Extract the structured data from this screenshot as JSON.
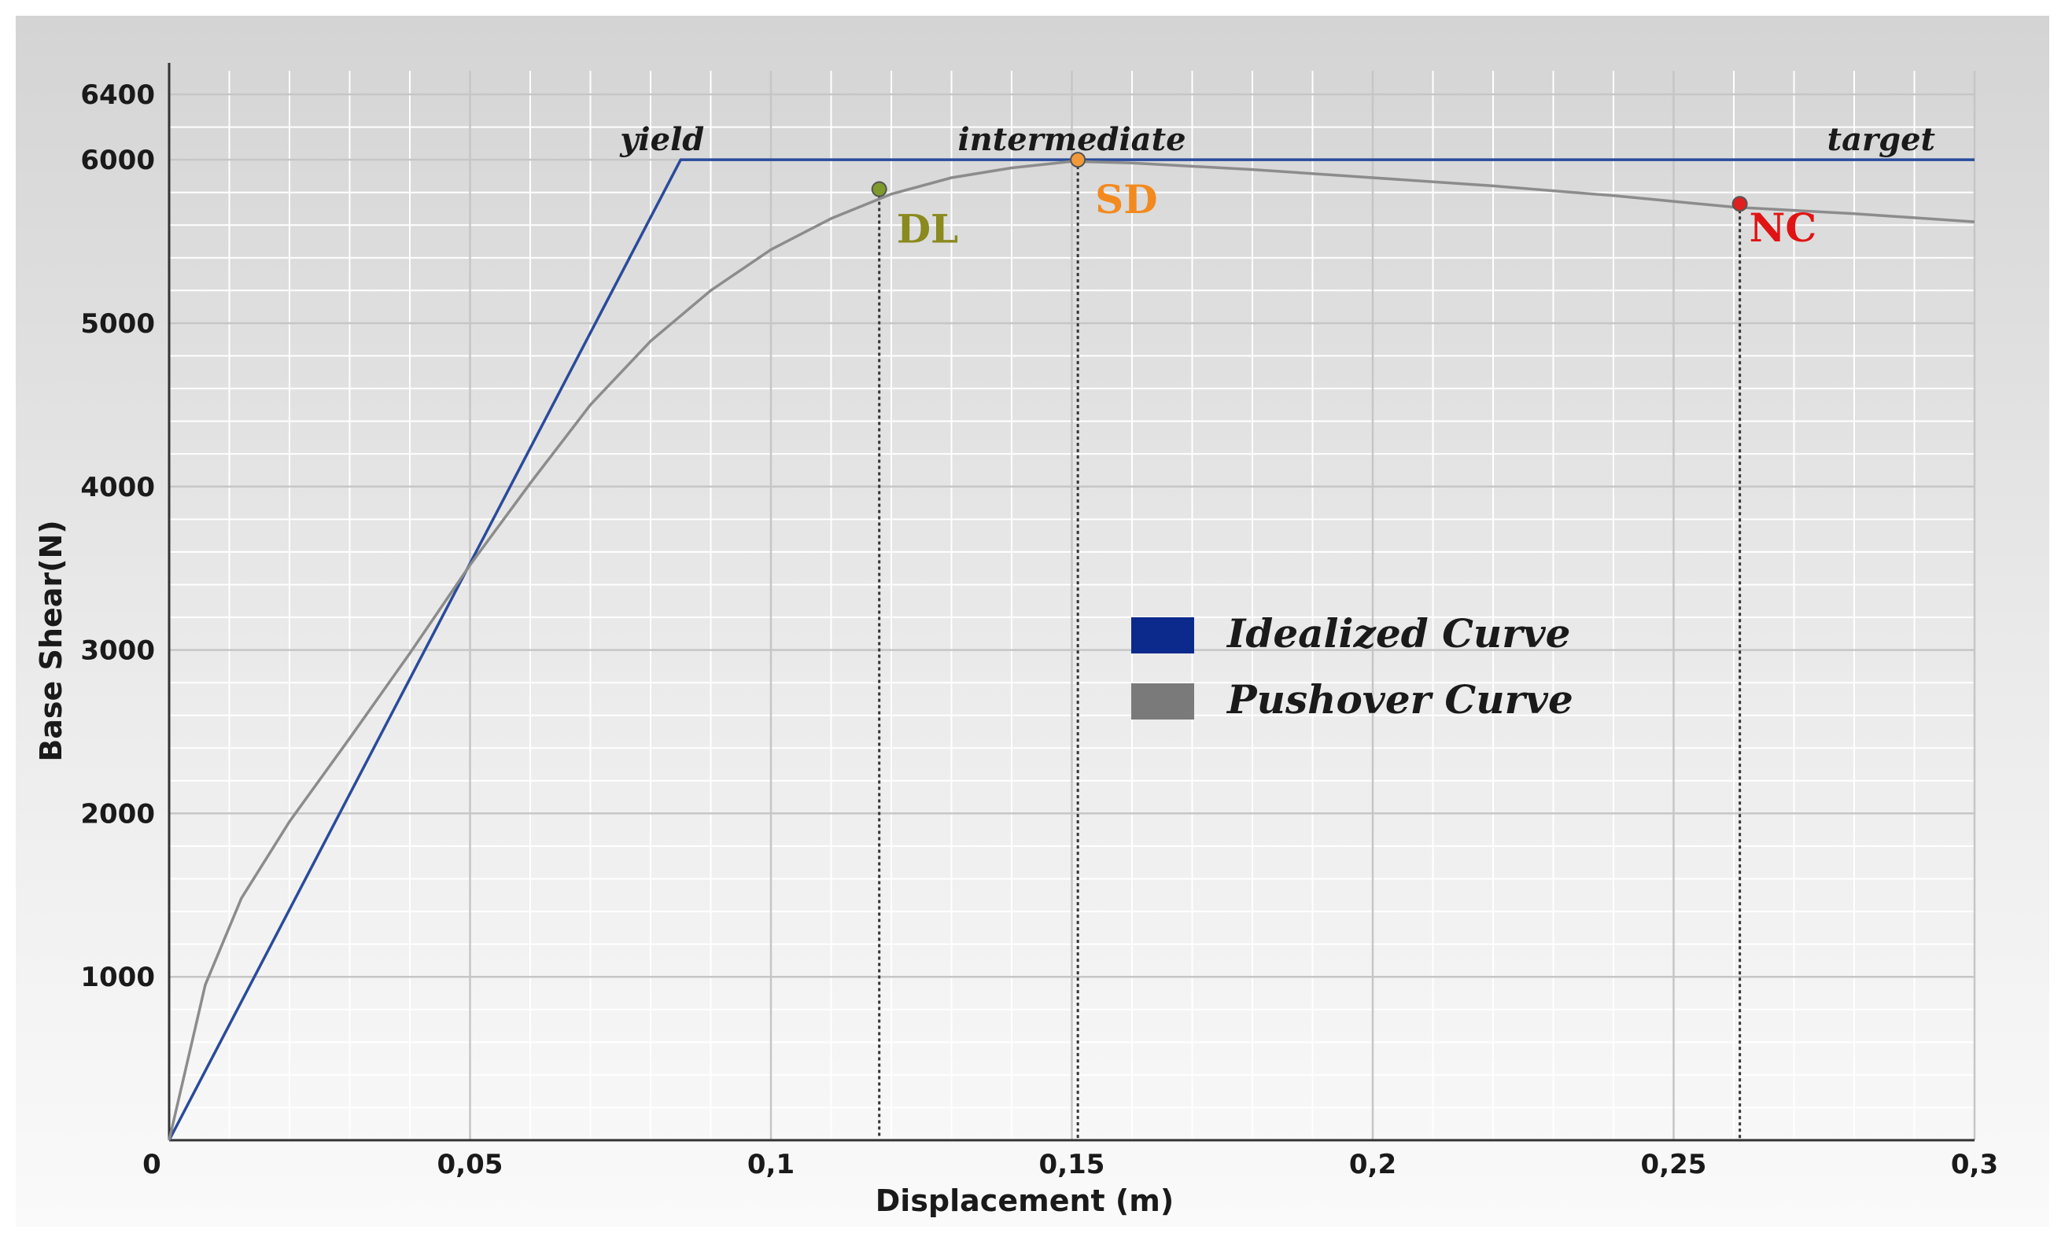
{
  "chart_data": {
    "type": "line",
    "xlabel": "Displacement (m)",
    "ylabel": "Base Shear(N)",
    "xlim": [
      0,
      0.3
    ],
    "ylim": [
      0,
      6400
    ],
    "x_ticks": [
      {
        "value": 0,
        "label": "0"
      },
      {
        "value": 0.05,
        "label": "0,05"
      },
      {
        "value": 0.1,
        "label": "0,1"
      },
      {
        "value": 0.15,
        "label": "0,15"
      },
      {
        "value": 0.2,
        "label": "0,2"
      },
      {
        "value": 0.25,
        "label": "0,25"
      },
      {
        "value": 0.3,
        "label": "0,3"
      }
    ],
    "y_ticks": [
      {
        "value": 1000,
        "label": "1000"
      },
      {
        "value": 2000,
        "label": "2000"
      },
      {
        "value": 3000,
        "label": "3000"
      },
      {
        "value": 4000,
        "label": "4000"
      },
      {
        "value": 5000,
        "label": "5000"
      },
      {
        "value": 6000,
        "label": "6000"
      },
      {
        "value": 6400,
        "label": "6400"
      }
    ],
    "grid": true,
    "legend_position": "center-right",
    "series": [
      {
        "name": "Idealized Curve",
        "color": "#2a4b9b",
        "legend_color": "#0b2a8c",
        "points": [
          [
            0,
            0
          ],
          [
            0.085,
            6000
          ],
          [
            0.3,
            6000
          ]
        ]
      },
      {
        "name": "Pushover Curve",
        "color": "#8c8c8c",
        "legend_color": "#7a7a7a",
        "points": [
          [
            0,
            0
          ],
          [
            0.006,
            950
          ],
          [
            0.012,
            1480
          ],
          [
            0.02,
            1950
          ],
          [
            0.03,
            2460
          ],
          [
            0.04,
            2980
          ],
          [
            0.05,
            3520
          ],
          [
            0.06,
            4020
          ],
          [
            0.07,
            4500
          ],
          [
            0.08,
            4890
          ],
          [
            0.09,
            5200
          ],
          [
            0.1,
            5450
          ],
          [
            0.11,
            5640
          ],
          [
            0.12,
            5790
          ],
          [
            0.13,
            5890
          ],
          [
            0.14,
            5950
          ],
          [
            0.15,
            5990
          ],
          [
            0.16,
            5980
          ],
          [
            0.18,
            5940
          ],
          [
            0.2,
            5890
          ],
          [
            0.22,
            5840
          ],
          [
            0.24,
            5780
          ],
          [
            0.26,
            5710
          ],
          [
            0.28,
            5670
          ],
          [
            0.3,
            5620
          ]
        ]
      }
    ],
    "annotations": [
      {
        "text": "yield",
        "x": 0.085,
        "y": 6000
      },
      {
        "text": "intermediate",
        "x": 0.15,
        "y": 6000
      },
      {
        "text": "target",
        "x": 0.3,
        "y": 6000
      }
    ],
    "performance_points": [
      {
        "label": "DL",
        "x": 0.118,
        "y": 5820,
        "color": "#8a8a1e",
        "marker_color": "#7d9a2a"
      },
      {
        "label": "SD",
        "x": 0.151,
        "y": 6000,
        "color": "#f28a1f",
        "marker_color": "#f29a3a"
      },
      {
        "label": "NC",
        "x": 0.261,
        "y": 5730,
        "color": "#e01414",
        "marker_color": "#e02020"
      }
    ]
  }
}
